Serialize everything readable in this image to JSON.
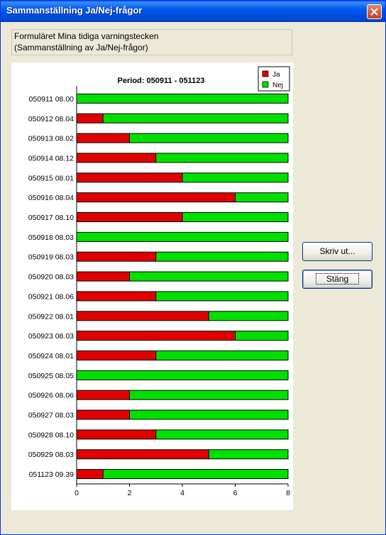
{
  "window": {
    "title": "Sammanställning Ja/Nej-frågor"
  },
  "header": {
    "line1": "Formuläret Mina tidiga varningstecken",
    "line2": "(Sammanställning av Ja/Nej-frågor)"
  },
  "buttons": {
    "print_label": "Skriv ut...",
    "close_label": "Stäng"
  },
  "colors": {
    "ja": "#e00000",
    "nej": "#00e000",
    "title_bar": "#0054e3"
  },
  "chart_data": {
    "type": "bar",
    "orientation": "horizontal",
    "stacked": true,
    "title": "Period: 050911 - 051123",
    "xlabel": "",
    "ylabel": "",
    "xlim": [
      0,
      8
    ],
    "xticks": [
      0,
      2,
      4,
      6,
      8
    ],
    "legend": {
      "position": "top-right",
      "entries": [
        "Ja",
        "Nej"
      ]
    },
    "categories": [
      "050911 08.00",
      "050912 08.04",
      "050913 08.02",
      "050914 08.12",
      "050915 08.01",
      "050916 08.04",
      "050917 08.10",
      "050918 08.03",
      "050919 08.03",
      "050920 08.03",
      "050921 08.06",
      "050922 08.01",
      "050923 08.03",
      "050924 08.01",
      "050925 08.05",
      "050926 08.06",
      "050927 08.03",
      "050928 08.10",
      "050929 08.03",
      "051123 09.39"
    ],
    "series": [
      {
        "name": "Ja",
        "values": [
          0,
          1,
          2,
          3,
          4,
          6,
          4,
          0,
          3,
          2,
          3,
          5,
          6,
          3,
          0,
          2,
          2,
          3,
          5,
          1
        ]
      },
      {
        "name": "Nej",
        "values": [
          8,
          7,
          6,
          5,
          4,
          2,
          4,
          8,
          5,
          6,
          5,
          3,
          2,
          5,
          8,
          6,
          6,
          5,
          3,
          7
        ]
      }
    ]
  }
}
